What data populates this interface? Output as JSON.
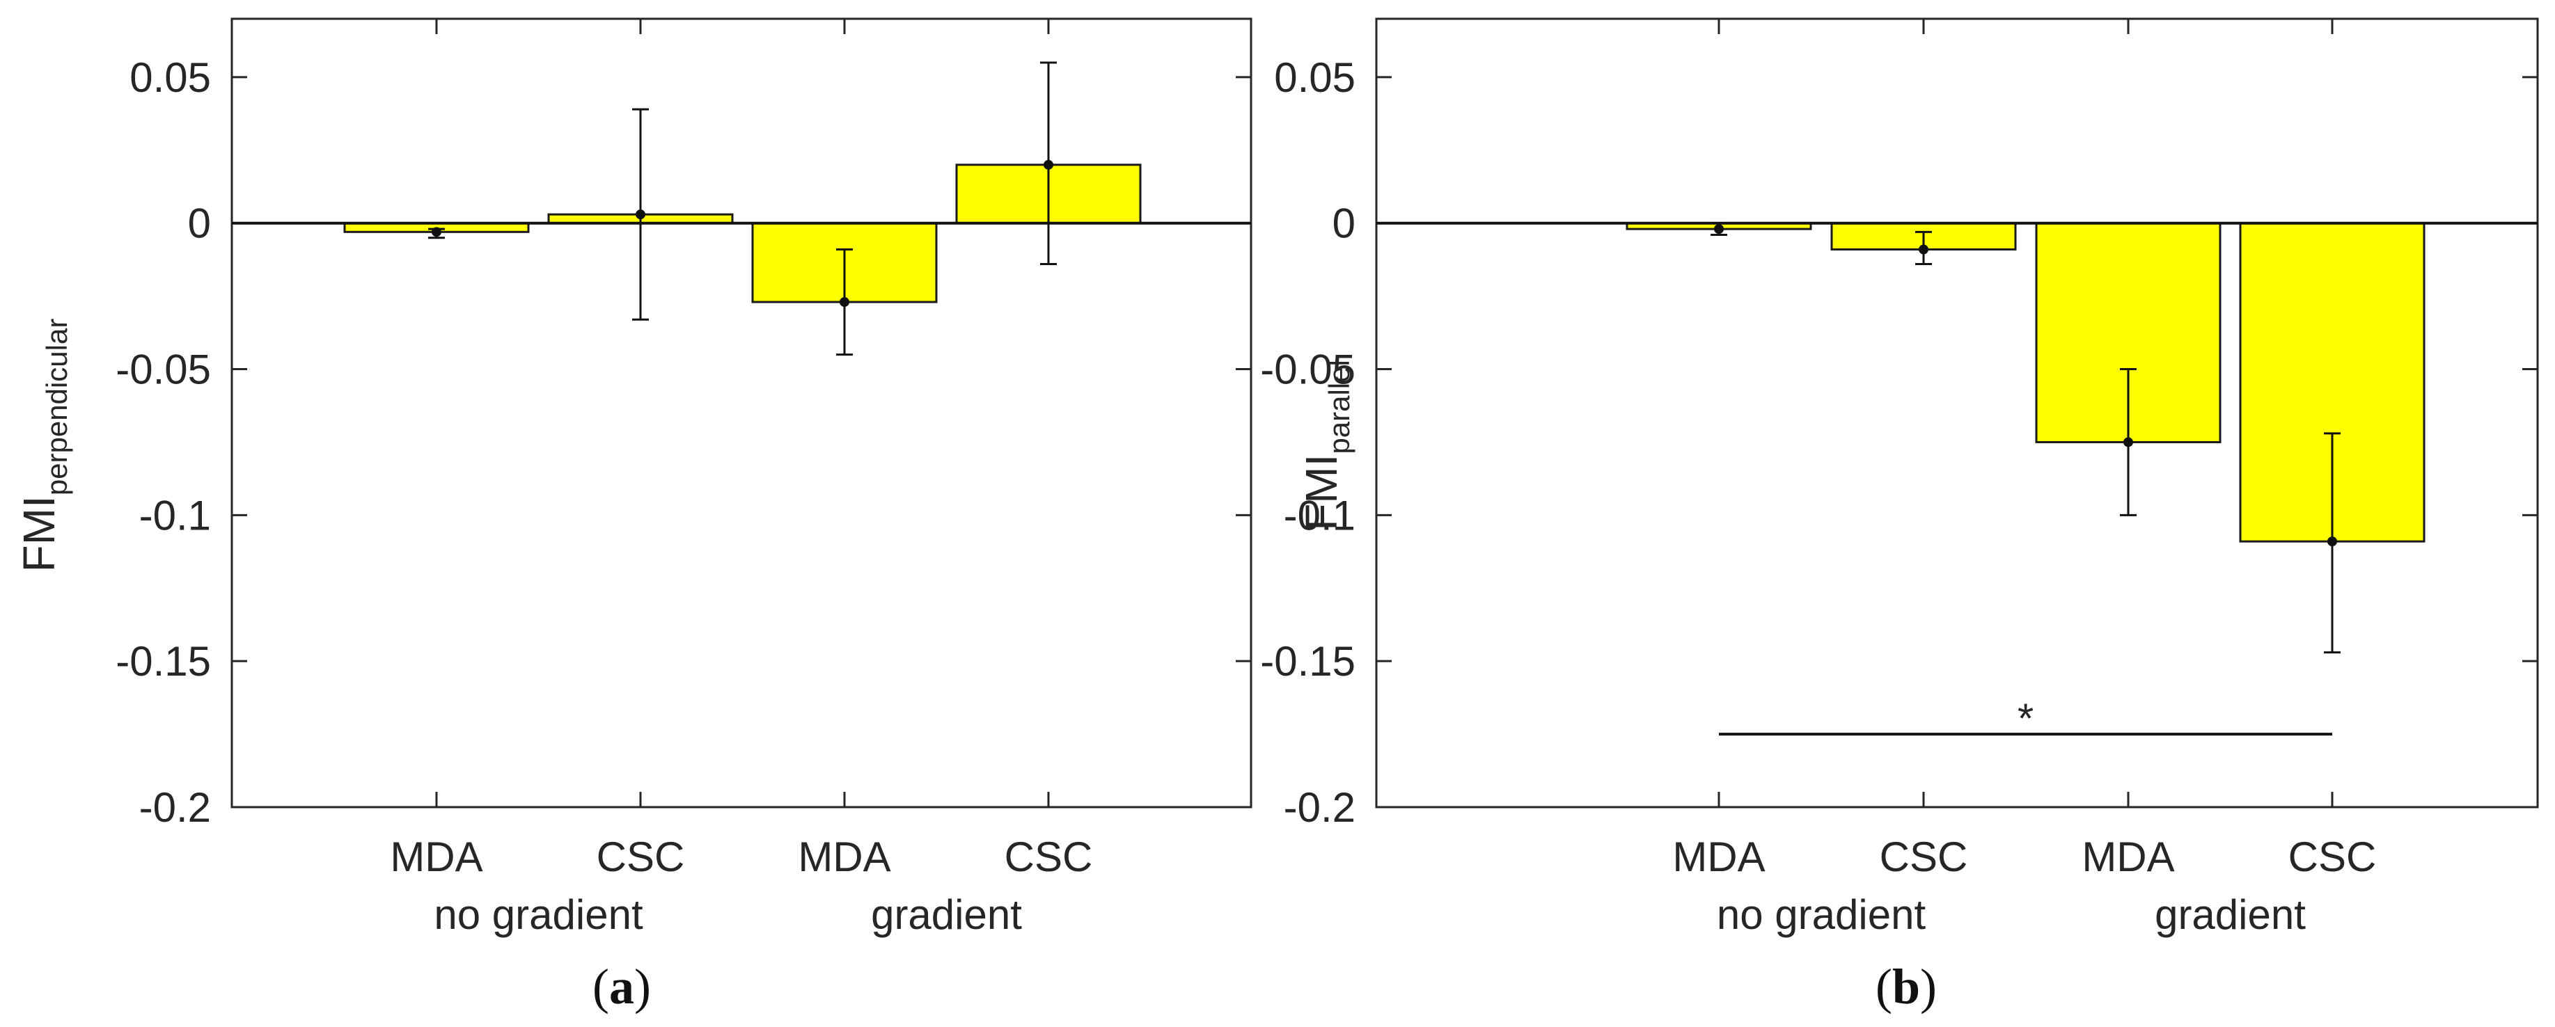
{
  "chart_data": [
    {
      "type": "bar",
      "panel_label": "a",
      "categories": [
        "MDA",
        "CSC",
        "MDA",
        "CSC"
      ],
      "groups": [
        {
          "label": "no gradient",
          "category_indices": [
            0,
            1
          ]
        },
        {
          "label": "gradient",
          "category_indices": [
            2,
            3
          ]
        }
      ],
      "values": [
        -0.003,
        0.003,
        -0.027,
        0.02
      ],
      "error_low": [
        -0.005,
        -0.033,
        -0.045,
        -0.014
      ],
      "error_high": [
        -0.002,
        0.039,
        -0.009,
        0.055
      ],
      "ylabel_main": "FMI",
      "ylabel_sub": "perpendicular",
      "xlabel": "",
      "ylim": [
        -0.2,
        0.07
      ],
      "yticks": [
        0.05,
        0,
        -0.05,
        -0.1,
        -0.15,
        -0.2
      ],
      "ytick_labels": [
        "0.05",
        "0",
        "-0.05",
        "-0.1",
        "-0.15",
        "-0.2"
      ],
      "bar_color": "#ffff00",
      "significance": null
    },
    {
      "type": "bar",
      "panel_label": "b",
      "categories": [
        "MDA",
        "CSC",
        "MDA",
        "CSC"
      ],
      "groups": [
        {
          "label": "no gradient",
          "category_indices": [
            0,
            1
          ]
        },
        {
          "label": "gradient",
          "category_indices": [
            2,
            3
          ]
        }
      ],
      "values": [
        -0.002,
        -0.009,
        -0.075,
        -0.109
      ],
      "error_low": [
        -0.004,
        -0.014,
        -0.1,
        -0.147
      ],
      "error_high": [
        0.0,
        -0.003,
        -0.05,
        -0.072
      ],
      "ylabel_main": "FMI",
      "ylabel_sub": "parallel",
      "xlabel": "",
      "ylim": [
        -0.2,
        0.07
      ],
      "yticks": [
        0.05,
        0,
        -0.05,
        -0.1,
        -0.15,
        -0.2
      ],
      "ytick_labels": [
        "0.05",
        "0",
        "-0.05",
        "-0.1",
        "-0.15",
        "-0.2"
      ],
      "bar_color": "#ffff00",
      "significance": {
        "from_category": 0,
        "to_category": 3,
        "y": -0.175,
        "label": "*"
      }
    }
  ]
}
